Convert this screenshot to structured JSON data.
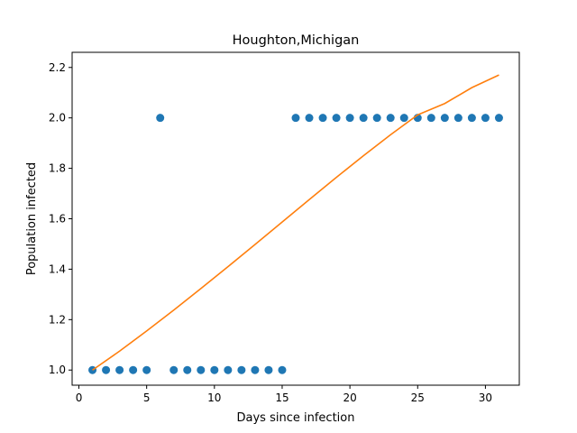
{
  "chart_data": {
    "type": "scatter",
    "title": "Houghton,Michigan",
    "xlabel": "Days since infection",
    "ylabel": "Population infected",
    "xlim": [
      -0.5,
      32.5
    ],
    "ylim": [
      0.94,
      2.26
    ],
    "xticks": [
      0,
      5,
      10,
      15,
      20,
      25,
      30
    ],
    "yticks": [
      1.0,
      1.2,
      1.4,
      1.6,
      1.8,
      2.0,
      2.2
    ],
    "grid": false,
    "series": [
      {
        "kind": "scatter",
        "color": "#1f77b4",
        "x": [
          1,
          2,
          3,
          4,
          5,
          6,
          7,
          8,
          9,
          10,
          11,
          12,
          13,
          14,
          15,
          16,
          17,
          18,
          19,
          20,
          21,
          22,
          23,
          24,
          25,
          26,
          27,
          28,
          29,
          30,
          31
        ],
        "y": [
          1,
          1,
          1,
          1,
          1,
          2,
          1,
          1,
          1,
          1,
          1,
          1,
          1,
          1,
          1,
          2,
          2,
          2,
          2,
          2,
          2,
          2,
          2,
          2,
          2,
          2,
          2,
          2,
          2,
          2,
          2
        ]
      },
      {
        "kind": "line",
        "color": "#ff7f0e",
        "x": [
          1,
          3,
          5,
          7,
          9,
          11,
          13,
          15,
          17,
          19,
          21,
          23,
          25,
          27,
          29,
          31
        ],
        "y": [
          1.0,
          1.075,
          1.155,
          1.238,
          1.323,
          1.41,
          1.498,
          1.587,
          1.676,
          1.764,
          1.85,
          1.933,
          2.012,
          2.057,
          2.12,
          2.17
        ]
      }
    ]
  }
}
